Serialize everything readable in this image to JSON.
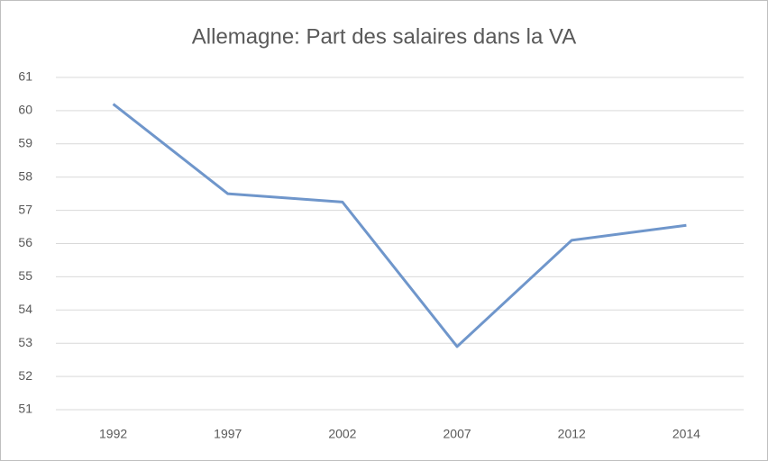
{
  "chart_data": {
    "type": "line",
    "title": "Allemagne:  Part des salaires dans la VA",
    "categories": [
      "1992",
      "1997",
      "2002",
      "2007",
      "2012",
      "2014"
    ],
    "series": [
      {
        "color": "#6f96cb",
        "values": [
          60.2,
          57.5,
          57.25,
          52.9,
          56.1,
          56.55
        ]
      }
    ],
    "ylim": [
      51,
      61
    ],
    "yticks": [
      51,
      52,
      53,
      54,
      55,
      56,
      57,
      58,
      59,
      60,
      61
    ],
    "grid": true
  }
}
